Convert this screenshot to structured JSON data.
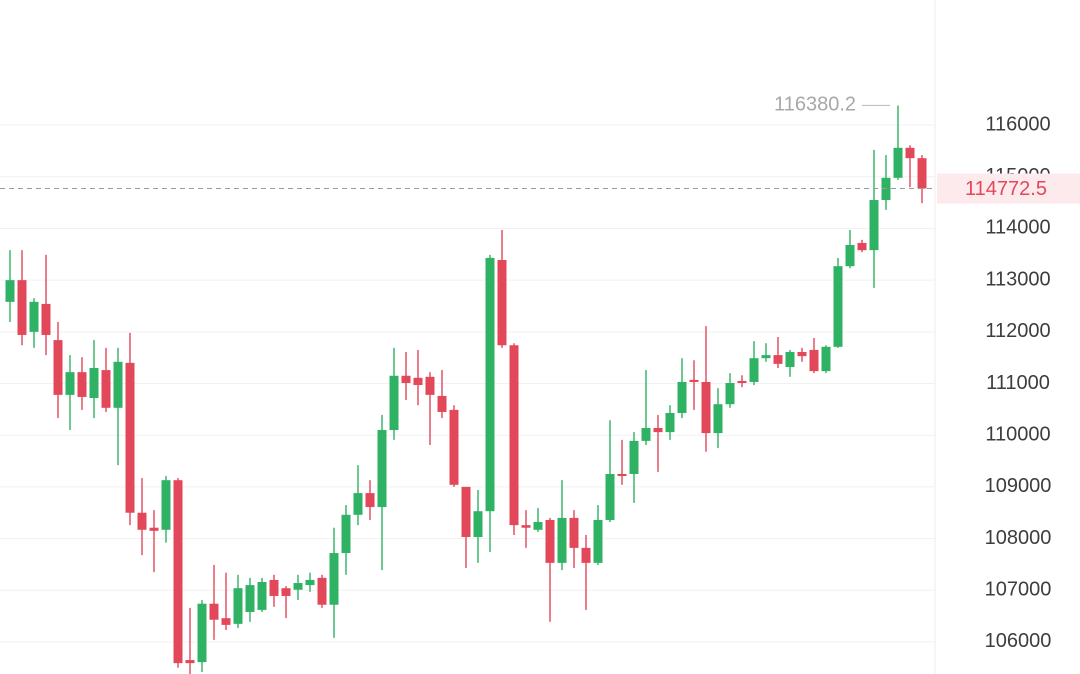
{
  "chart_data": {
    "type": "candlestick",
    "open": [
      112580,
      113000,
      112000,
      112540,
      111840,
      110780,
      111220,
      110720,
      111260,
      110530,
      111400,
      108500,
      108210,
      108170,
      109130,
      105650,
      105610,
      106740,
      106460,
      106350,
      106580,
      106620,
      107200,
      107040,
      107010,
      107100,
      107240,
      106720,
      107720,
      108460,
      108880,
      108610,
      110100,
      111150,
      111110,
      111130,
      110760,
      110490,
      109000,
      108030,
      108530,
      113390,
      111740,
      108260,
      108170,
      108360,
      107530,
      108400,
      107820,
      107530,
      108360,
      109250,
      109250,
      109890,
      110140,
      110060,
      110430,
      111070,
      111030,
      110040,
      110600,
      111050,
      111030,
      111490,
      111550,
      111320,
      111610,
      111650,
      111240,
      111710,
      113270,
      113720,
      113580,
      114550,
      114980,
      115560,
      115360
    ],
    "high": [
      113580,
      113580,
      112650,
      113490,
      112190,
      111550,
      111510,
      111840,
      111690,
      111690,
      111980,
      109170,
      108550,
      109210,
      109170,
      106660,
      106810,
      107490,
      107340,
      107300,
      107240,
      107240,
      107300,
      107080,
      107300,
      107340,
      107300,
      108210,
      108650,
      109420,
      109130,
      110390,
      111690,
      111610,
      111650,
      111220,
      111260,
      110580,
      109000,
      108940,
      113490,
      113970,
      111780,
      108550,
      108590,
      108400,
      109130,
      108550,
      108070,
      108650,
      110290,
      109910,
      110060,
      111260,
      110390,
      110580,
      111490,
      111450,
      112110,
      110910,
      111200,
      111160,
      111820,
      111780,
      111900,
      111650,
      111690,
      111880,
      111740,
      113430,
      113970,
      113780,
      115520,
      115420,
      116380.2,
      115610,
      115420
    ],
    "low": [
      112190,
      111740,
      111690,
      111550,
      110330,
      110100,
      110490,
      110330,
      110450,
      109420,
      108260,
      107680,
      107350,
      107920,
      105500,
      105380,
      105420,
      106040,
      106230,
      106270,
      106390,
      106580,
      106680,
      106460,
      106810,
      106970,
      106660,
      106080,
      107300,
      108260,
      108360,
      107390,
      109910,
      110680,
      110580,
      109810,
      110330,
      109000,
      107430,
      107530,
      107740,
      111690,
      108070,
      107820,
      108130,
      106390,
      107390,
      107430,
      106620,
      107490,
      108320,
      109040,
      108690,
      109810,
      109290,
      109910,
      110330,
      110490,
      109680,
      109750,
      110530,
      110930,
      110970,
      111420,
      111300,
      111130,
      111420,
      111200,
      111200,
      111690,
      113230,
      113540,
      112850,
      114360,
      114940,
      114800,
      114490
    ],
    "close": [
      113000,
      111940,
      112580,
      111940,
      110780,
      111220,
      110740,
      111300,
      110530,
      111420,
      108500,
      108170,
      108150,
      109130,
      105590,
      105590,
      106740,
      106430,
      106330,
      107040,
      107100,
      107160,
      106890,
      106890,
      107140,
      107200,
      106720,
      107720,
      108460,
      108880,
      108610,
      110100,
      111150,
      111010,
      110970,
      110780,
      110450,
      109040,
      108030,
      108530,
      113430,
      111740,
      108260,
      108210,
      108320,
      107530,
      108400,
      107820,
      107530,
      108360,
      109250,
      109210,
      109890,
      110140,
      110060,
      110430,
      111030,
      111030,
      110040,
      110600,
      111010,
      111010,
      111490,
      111550,
      111380,
      111610,
      111530,
      111240,
      111710,
      113270,
      113680,
      113580,
      114550,
      114980,
      115560,
      115360,
      114772.5
    ],
    "up_color": "#2fb264",
    "down_color": "#e2485a",
    "ylim": [
      105380,
      118420
    ],
    "yticks": [
      106000,
      107000,
      108000,
      109000,
      110000,
      111000,
      112000,
      113000,
      114000,
      115000,
      116000
    ],
    "grid": true
  }
}
